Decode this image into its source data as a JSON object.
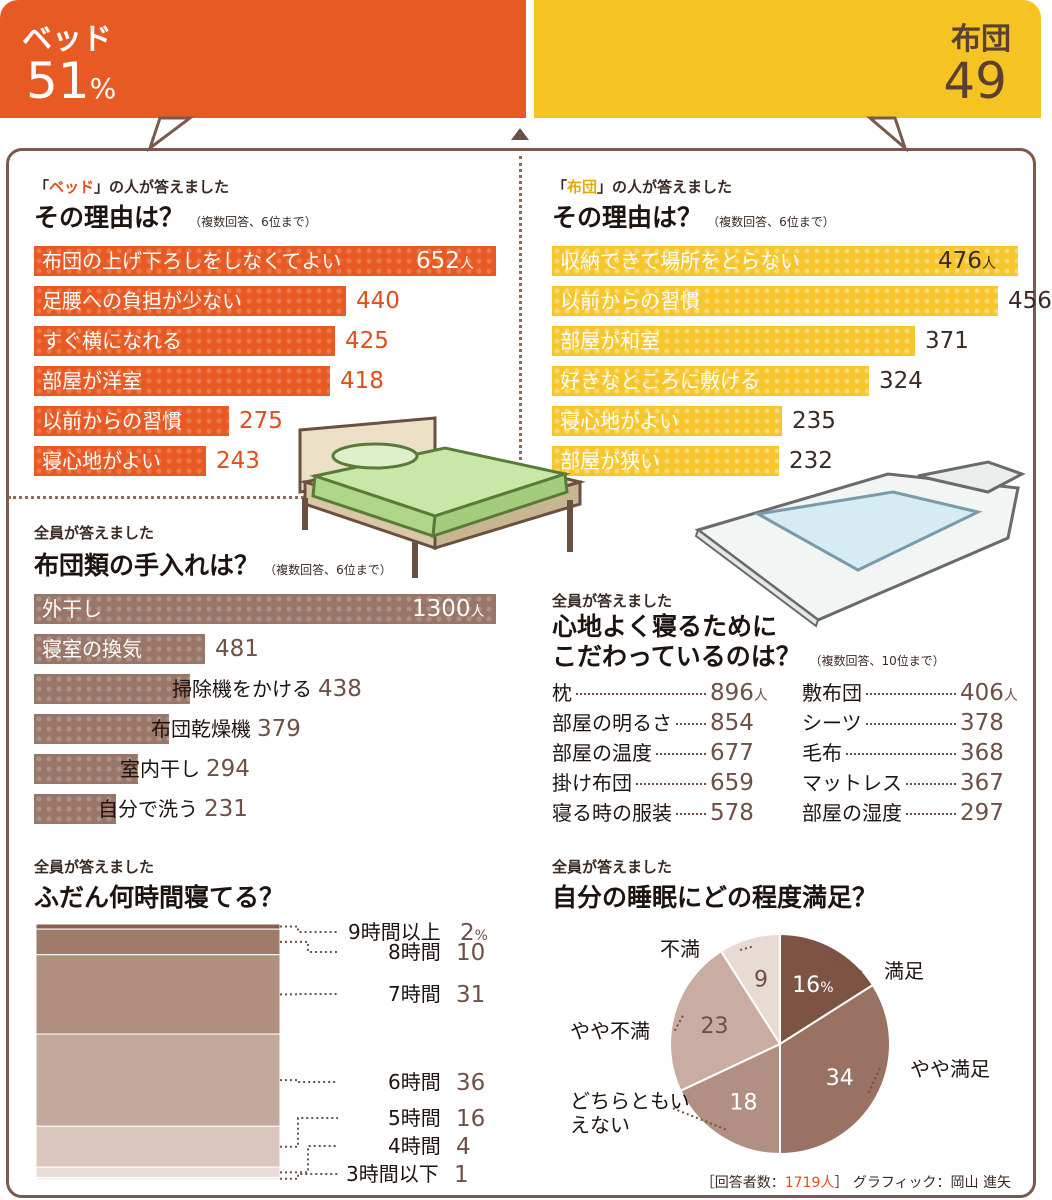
{
  "split": {
    "bed": {
      "label": "ベッド",
      "value": "51",
      "unit": "%",
      "color": "#e85a24"
    },
    "futon": {
      "label": "布団",
      "value": "49",
      "color": "#f5c423"
    }
  },
  "bed_reasons": {
    "subtitle_pre": "「",
    "subtitle_key": "ベッド",
    "subtitle_post": "」の人が答えました",
    "title": "その理由は？",
    "note": "（複数回答、6位まで）",
    "unit": "人"
  },
  "futon_reasons": {
    "subtitle_pre": "「",
    "subtitle_key": "布団",
    "subtitle_post": "」の人が答えました",
    "title": "その理由は？",
    "note": "（複数回答、6位まで）",
    "unit": "人"
  },
  "care": {
    "subtitle_key": "全員",
    "subtitle_post": "が答えました",
    "title": "布団類の手入れは？",
    "note": "（複数回答、6位まで）",
    "unit": "人"
  },
  "comfort": {
    "subtitle_key": "全員",
    "subtitle_post": "が答えました",
    "title_line1": "心地よく寝るために",
    "title_line2": "こだわっているのは？",
    "note": "（複数回答、10位まで）",
    "unit": "人"
  },
  "hours": {
    "subtitle_key": "全員",
    "subtitle_post": "が答えました",
    "title": "ふだん何時間寝てる？",
    "unit": "%"
  },
  "satisfaction": {
    "subtitle_key": "全員",
    "subtitle_post": "が答えました",
    "title": "自分の睡眠にどの程度満足？",
    "unit": "%"
  },
  "footer": {
    "text_pre": "［回答者数：",
    "respondents": "1719人",
    "text_post": "］ グラフィック：岡山 進矢"
  },
  "chart_data": [
    {
      "type": "bar",
      "id": "bed_reasons",
      "categories": [
        "布団の上げ下ろしをしなくてよい",
        "足腰への負担が少ない",
        "すぐ横になれる",
        "部屋が洋室",
        "以前からの習慣",
        "寝心地がよい"
      ],
      "values": [
        652,
        440,
        425,
        418,
        275,
        243
      ]
    },
    {
      "type": "bar",
      "id": "futon_reasons",
      "categories": [
        "収納できて場所をとらない",
        "以前からの習慣",
        "部屋が和室",
        "好きなところに敷ける",
        "寝心地がよい",
        "部屋が狭い"
      ],
      "values": [
        476,
        456,
        371,
        324,
        235,
        232
      ]
    },
    {
      "type": "bar",
      "id": "care",
      "categories": [
        "外干し",
        "寝室の換気",
        "掃除機をかける",
        "布団乾燥機",
        "室内干し",
        "自分で洗う"
      ],
      "values": [
        1300,
        481,
        438,
        379,
        294,
        231
      ]
    },
    {
      "type": "table",
      "id": "comfort",
      "items": [
        {
          "label": "枕",
          "value": 896
        },
        {
          "label": "部屋の明るさ",
          "value": 854
        },
        {
          "label": "部屋の温度",
          "value": 677
        },
        {
          "label": "掛け布団",
          "value": 659
        },
        {
          "label": "寝る時の服装",
          "value": 578
        },
        {
          "label": "敷布団",
          "value": 406
        },
        {
          "label": "シーツ",
          "value": 378
        },
        {
          "label": "毛布",
          "value": 368
        },
        {
          "label": "マットレス",
          "value": 367
        },
        {
          "label": "部屋の湿度",
          "value": 297
        }
      ]
    },
    {
      "type": "bar",
      "id": "hours",
      "stacked": true,
      "categories": [
        "9時間以上",
        "8時間",
        "7時間",
        "6時間",
        "5時間",
        "4時間",
        "3時間以下"
      ],
      "values": [
        2,
        10,
        31,
        36,
        16,
        4,
        1
      ],
      "colors": [
        "#8a5f4f",
        "#a07a6b",
        "#b08e80",
        "#c4a89b",
        "#dac6bc",
        "#e9ddd6",
        "#f3ece8"
      ]
    },
    {
      "type": "pie",
      "id": "satisfaction",
      "categories": [
        "満足",
        "やや満足",
        "どちらともいえない",
        "やや不満",
        "不満"
      ],
      "values": [
        16,
        34,
        18,
        23,
        9
      ],
      "colors": [
        "#7d5444",
        "#9a7264",
        "#b18f82",
        "#c9ada2",
        "#e8dbd4"
      ]
    }
  ]
}
